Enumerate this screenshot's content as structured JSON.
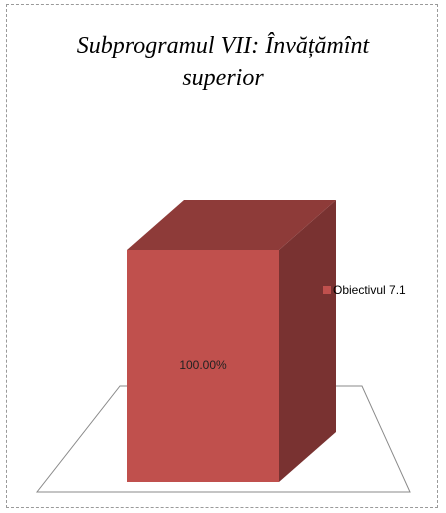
{
  "chart_data": {
    "type": "bar3d",
    "title": "Subprogramul VII: Învățămînt superior",
    "series": [
      {
        "name": "Obiectivul 7.1",
        "color": "#c0504d",
        "values": [
          100
        ],
        "value_labels": [
          "100.00%"
        ]
      }
    ]
  }
}
